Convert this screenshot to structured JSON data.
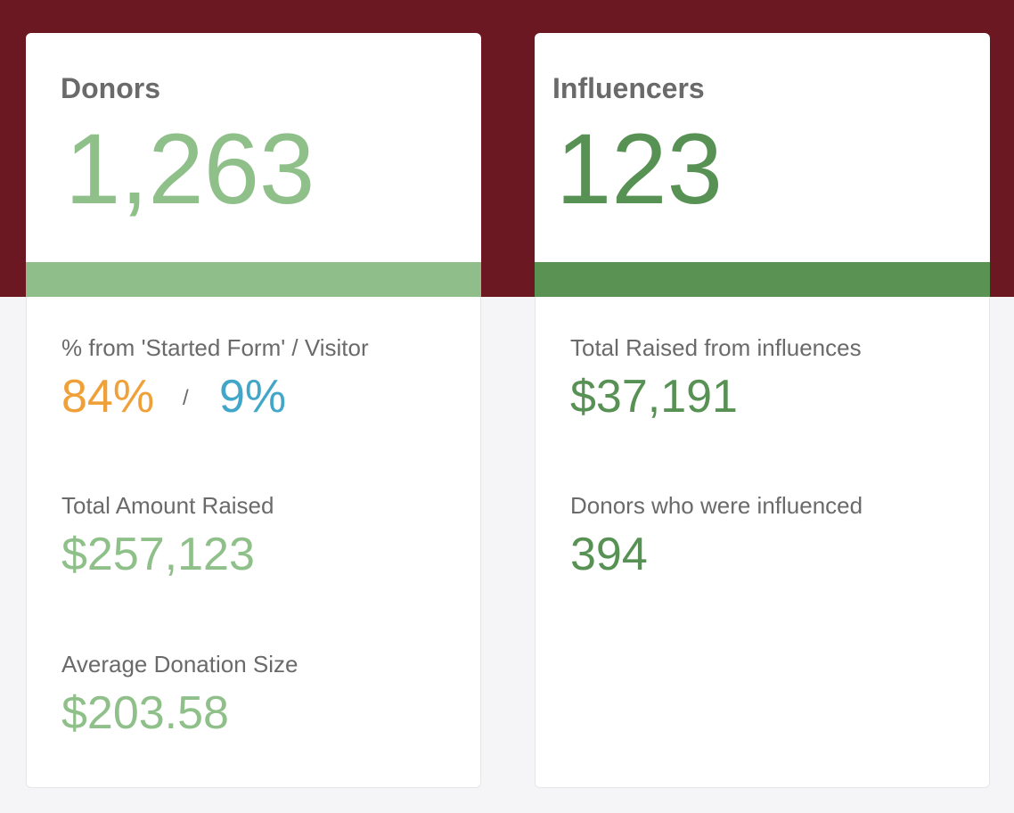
{
  "donors": {
    "title": "Donors",
    "count": "1,263",
    "started_form_label": "% from 'Started Form' / Visitor",
    "started_form_pct": "84%",
    "separator": "/",
    "visitor_pct": "9%",
    "total_raised_label": "Total Amount Raised",
    "total_raised": "$257,123",
    "avg_donation_label": "Average Donation Size",
    "avg_donation": "$203.58"
  },
  "influencers": {
    "title": "Influencers",
    "count": "123",
    "total_raised_label": "Total Raised from influences",
    "total_raised": "$37,191",
    "donors_influenced_label": "Donors who were influenced",
    "donors_influenced": "394"
  },
  "colors": {
    "header_band": "#6b1822",
    "donors_accent": "#8fbe8b",
    "influencers_accent": "#5a9254",
    "started_form_color": "#f0a038",
    "visitor_color": "#42a6c8"
  }
}
